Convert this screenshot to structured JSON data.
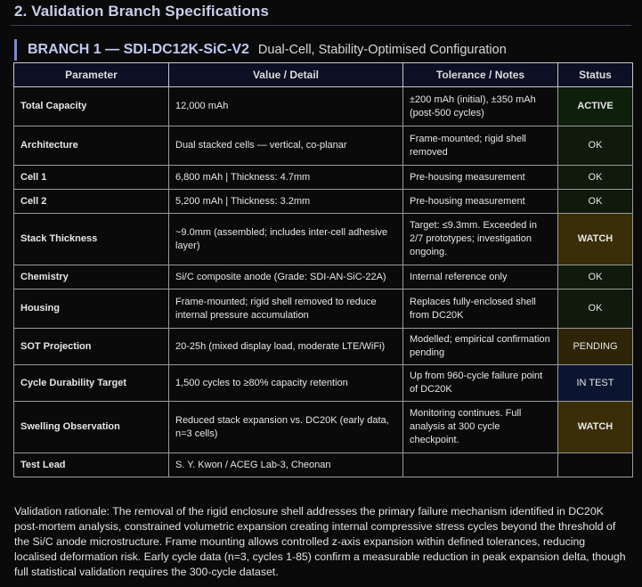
{
  "section_title": "2. Validation Branch Specifications",
  "branch": {
    "id_label": "BRANCH 1 — SDI-DC12K-SiC-V2",
    "subtitle": "Dual-Cell, Stability-Optimised Configuration"
  },
  "table": {
    "headers": {
      "parameter": "Parameter",
      "value": "Value / Detail",
      "tolerance": "Tolerance / Notes",
      "status": "Status"
    },
    "rows": [
      {
        "parameter": "Total Capacity",
        "value": "12,000 mAh",
        "tolerance": "±200 mAh (initial), ±350 mAh (post-500 cycles)",
        "status": "ACTIVE",
        "status_kind": "active"
      },
      {
        "parameter": "Architecture",
        "value": "Dual stacked cells — vertical, co-planar",
        "tolerance": "Frame-mounted; rigid shell removed",
        "status": "OK",
        "status_kind": "ok"
      },
      {
        "parameter": "Cell 1",
        "value": "6,800 mAh | Thickness: 4.7mm",
        "tolerance": "Pre-housing measurement",
        "status": "OK",
        "status_kind": "ok"
      },
      {
        "parameter": "Cell 2",
        "value": "5,200 mAh | Thickness: 3.2mm",
        "tolerance": "Pre-housing measurement",
        "status": "OK",
        "status_kind": "ok"
      },
      {
        "parameter": "Stack Thickness",
        "value": "~9.0mm (assembled; includes inter-cell adhesive layer)",
        "tolerance": "Target: ≤9.3mm. Exceeded in 2/7 prototypes; investigation ongoing.",
        "status": "WATCH",
        "status_kind": "watch"
      },
      {
        "parameter": "Chemistry",
        "value": "Si/C composite anode (Grade: SDI-AN-SiC-22A)",
        "tolerance": "Internal reference only",
        "status": "OK",
        "status_kind": "ok"
      },
      {
        "parameter": "Housing",
        "value": "Frame-mounted; rigid shell removed to reduce internal pressure accumulation",
        "tolerance": "Replaces fully-enclosed shell from DC20K",
        "status": "OK",
        "status_kind": "ok"
      },
      {
        "parameter": "SOT Projection",
        "value": "20-25h (mixed display load, moderate LTE/WiFi)",
        "tolerance": "Modelled; empirical confirmation pending",
        "status": "PENDING",
        "status_kind": "pending"
      },
      {
        "parameter": "Cycle Durability Target",
        "value": "1,500 cycles to ≥80% capacity retention",
        "tolerance": "Up from 960-cycle failure point of DC20K",
        "status": "IN TEST",
        "status_kind": "intest"
      },
      {
        "parameter": "Swelling Observation",
        "value": "Reduced stack expansion vs. DC20K (early data, n=3 cells)",
        "tolerance": "Monitoring continues. Full analysis at 300 cycle checkpoint.",
        "status": "WATCH",
        "status_kind": "watch"
      },
      {
        "parameter": "Test Lead",
        "value": "S. Y. Kwon / ACEG Lab-3, Cheonan",
        "tolerance": "",
        "status": "",
        "status_kind": "none"
      }
    ]
  },
  "rationale": "Validation rationale: The removal of the rigid enclosure shell addresses the primary failure mechanism identified in DC20K post-mortem analysis, constrained volumetric expansion creating internal compressive stress cycles beyond the threshold of the Si/C anode microstructure. Frame mounting allows controlled z-axis expansion within defined tolerances, reducing localised deformation risk. Early cycle data (n=3, cycles 1-85) confirm a measurable reduction in peak expansion delta, though full statistical validation requires the 300-cycle dataset."
}
